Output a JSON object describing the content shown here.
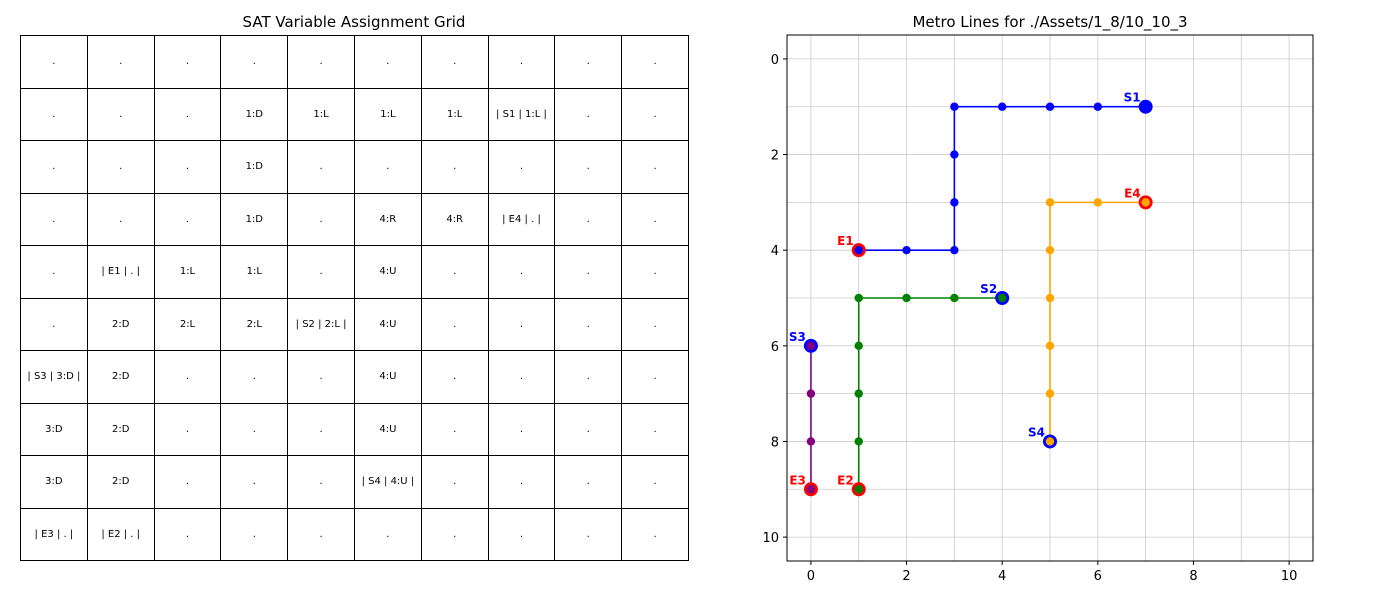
{
  "sat_grid": {
    "title": "SAT Variable Assignment Grid",
    "rows": [
      [
        ".",
        ".",
        ".",
        ".",
        ".",
        ".",
        ".",
        ".",
        ".",
        "."
      ],
      [
        ".",
        ".",
        ".",
        "1:D",
        "1:L",
        "1:L",
        "1:L",
        "| S1 | 1:L |",
        ".",
        "."
      ],
      [
        ".",
        ".",
        ".",
        "1:D",
        ".",
        ".",
        ".",
        ".",
        ".",
        "."
      ],
      [
        ".",
        ".",
        ".",
        "1:D",
        ".",
        "4:R",
        "4:R",
        "| E4 | . |",
        ".",
        "."
      ],
      [
        ".",
        "| E1 | . |",
        "1:L",
        "1:L",
        ".",
        "4:U",
        ".",
        ".",
        ".",
        "."
      ],
      [
        ".",
        "2:D",
        "2:L",
        "2:L",
        "| S2 | 2:L |",
        "4:U",
        ".",
        ".",
        ".",
        "."
      ],
      [
        "| S3 | 3:D |",
        "2:D",
        ".",
        ".",
        ".",
        "4:U",
        ".",
        ".",
        ".",
        "."
      ],
      [
        "3:D",
        "2:D",
        ".",
        ".",
        ".",
        "4:U",
        ".",
        ".",
        ".",
        "."
      ],
      [
        "3:D",
        "2:D",
        ".",
        ".",
        ".",
        "| S4 | 4:U |",
        ".",
        ".",
        ".",
        "."
      ],
      [
        "| E3 | . |",
        "| E2 | . |",
        ".",
        ".",
        ".",
        ".",
        ".",
        ".",
        ".",
        "."
      ]
    ]
  },
  "chart_data": {
    "type": "line",
    "title": "Metro Lines for ./Assets/1_8/10_10_3",
    "xlim": [
      -0.5,
      10.5
    ],
    "ylim": [
      10.5,
      -0.5
    ],
    "y_inverted": true,
    "xticks": [
      0,
      2,
      4,
      6,
      8,
      10
    ],
    "yticks": [
      0,
      2,
      4,
      6,
      8,
      10
    ],
    "grid": true,
    "series": [
      {
        "color": "#0000ff",
        "points": [
          [
            7,
            1
          ],
          [
            6,
            1
          ],
          [
            5,
            1
          ],
          [
            4,
            1
          ],
          [
            3,
            1
          ],
          [
            3,
            2
          ],
          [
            3,
            3
          ],
          [
            3,
            4
          ],
          [
            2,
            4
          ],
          [
            1,
            4
          ]
        ],
        "start": {
          "label": "S1",
          "x": 7,
          "y": 1
        },
        "end": {
          "label": "E1",
          "x": 1,
          "y": 4
        }
      },
      {
        "color": "#008000",
        "points": [
          [
            4,
            5
          ],
          [
            3,
            5
          ],
          [
            2,
            5
          ],
          [
            1,
            5
          ],
          [
            1,
            6
          ],
          [
            1,
            7
          ],
          [
            1,
            8
          ],
          [
            1,
            9
          ]
        ],
        "start": {
          "label": "S2",
          "x": 4,
          "y": 5
        },
        "end": {
          "label": "E2",
          "x": 1,
          "y": 9
        }
      },
      {
        "color": "#800080",
        "points": [
          [
            0,
            6
          ],
          [
            0,
            7
          ],
          [
            0,
            8
          ],
          [
            0,
            9
          ]
        ],
        "start": {
          "label": "S3",
          "x": 0,
          "y": 6
        },
        "end": {
          "label": "E3",
          "x": 0,
          "y": 9
        }
      },
      {
        "color": "#ffa500",
        "points": [
          [
            5,
            8
          ],
          [
            5,
            7
          ],
          [
            5,
            6
          ],
          [
            5,
            5
          ],
          [
            5,
            4
          ],
          [
            5,
            3
          ],
          [
            6,
            3
          ],
          [
            7,
            3
          ]
        ],
        "start": {
          "label": "S4",
          "x": 5,
          "y": 8
        },
        "end": {
          "label": "E4",
          "x": 7,
          "y": 3
        }
      }
    ],
    "start_marker_color": "#0000ff",
    "end_marker_color": "#ff0000"
  }
}
